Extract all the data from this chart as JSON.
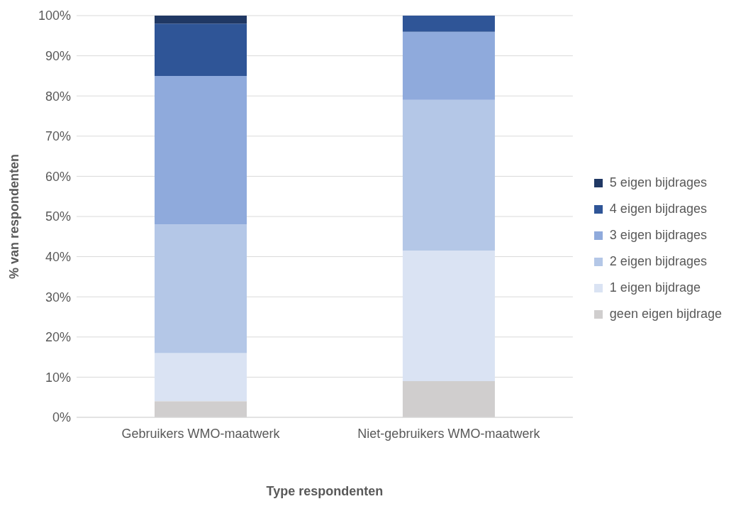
{
  "chart_data": {
    "type": "bar",
    "stacked": true,
    "xlabel": "Type respondenten",
    "ylabel": "% van respondenten",
    "categories": [
      "Gebruikers WMO-maatwerk",
      "Niet-gebruikers WMO-maatwerk"
    ],
    "series": [
      {
        "name": "geen eigen bijdrage",
        "color": "#d0cece",
        "values": [
          4,
          9
        ]
      },
      {
        "name": "1 eigen bijdrage",
        "color": "#dae3f3",
        "values": [
          12,
          32.5
        ]
      },
      {
        "name": "2 eigen bijdrages",
        "color": "#b4c7e7",
        "values": [
          32,
          37.5
        ]
      },
      {
        "name": "3 eigen bijdrages",
        "color": "#8faadc",
        "values": [
          37,
          17
        ]
      },
      {
        "name": "4 eigen bijdrages",
        "color": "#2f5597",
        "values": [
          13,
          4
        ]
      },
      {
        "name": "5 eigen bijdrages",
        "color": "#203864",
        "values": [
          2,
          0
        ]
      }
    ],
    "ylim": [
      0,
      100
    ],
    "yticks": [
      {
        "value": 0,
        "label": "0%"
      },
      {
        "value": 10,
        "label": "10%"
      },
      {
        "value": 20,
        "label": "20%"
      },
      {
        "value": 30,
        "label": "30%"
      },
      {
        "value": 40,
        "label": "40%"
      },
      {
        "value": 50,
        "label": "50%"
      },
      {
        "value": 60,
        "label": "60%"
      },
      {
        "value": 70,
        "label": "70%"
      },
      {
        "value": 80,
        "label": "80%"
      },
      {
        "value": 90,
        "label": "90%"
      },
      {
        "value": 100,
        "label": "100%"
      }
    ],
    "grid": "y",
    "legend": "right"
  }
}
